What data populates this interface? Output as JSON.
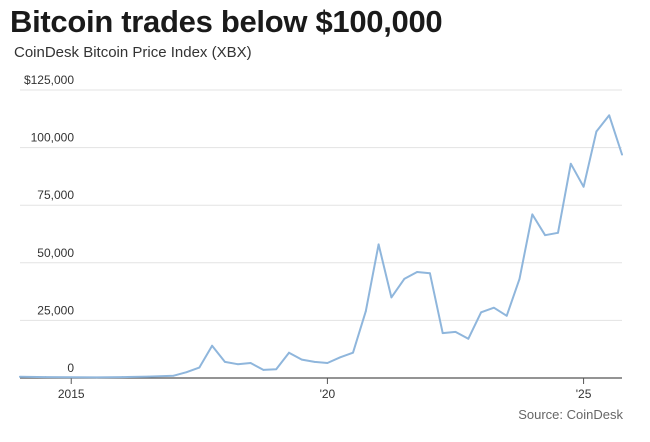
{
  "title": "Bitcoin trades below $100,000",
  "subtitle": "CoinDesk Bitcoin Price Index (XBX)",
  "source": "Source: CoinDesk",
  "colors": {
    "line": "#8fb6dc",
    "grid": "#e3e3e3",
    "axis": "#555555"
  },
  "chart_data": {
    "type": "line",
    "title": "Bitcoin trades below $100,000",
    "subtitle": "CoinDesk Bitcoin Price Index (XBX)",
    "xlabel": "",
    "ylabel": "",
    "ylim": [
      0,
      125000
    ],
    "xlim": [
      2014.0,
      2025.75
    ],
    "y_ticks": [
      {
        "value": 0,
        "label": "0"
      },
      {
        "value": 25000,
        "label": "25,000"
      },
      {
        "value": 50000,
        "label": "50,000"
      },
      {
        "value": 75000,
        "label": "75,000"
      },
      {
        "value": 100000,
        "label": "100,000"
      },
      {
        "value": 125000,
        "label": "$125,000"
      }
    ],
    "x_ticks": [
      {
        "value": 2015,
        "label": "2015"
      },
      {
        "value": 2020,
        "label": "'20"
      },
      {
        "value": 2025,
        "label": "'25"
      }
    ],
    "grid": true,
    "legend": "none",
    "series": [
      {
        "x": [
          2014.0,
          2014.5,
          2015.0,
          2015.5,
          2016.0,
          2016.5,
          2017.0,
          2017.25,
          2017.5,
          2017.75,
          2018.0,
          2018.25,
          2018.5,
          2018.75,
          2019.0,
          2019.25,
          2019.5,
          2019.75,
          2020.0,
          2020.25,
          2020.5,
          2020.75,
          2021.0,
          2021.25,
          2021.5,
          2021.75,
          2022.0,
          2022.25,
          2022.5,
          2022.75,
          2023.0,
          2023.25,
          2023.5,
          2023.75,
          2024.0,
          2024.25,
          2024.5,
          2024.75,
          2025.0,
          2025.25,
          2025.5,
          2025.75
        ],
        "values": [
          500,
          400,
          300,
          250,
          400,
          600,
          1000,
          2500,
          4500,
          14000,
          7000,
          6000,
          6500,
          3500,
          3800,
          11000,
          8000,
          7000,
          6500,
          9000,
          11000,
          29000,
          58000,
          35000,
          43000,
          46000,
          45500,
          19500,
          20000,
          17000,
          28500,
          30500,
          27000,
          43000,
          71000,
          62000,
          63000,
          93000,
          83000,
          107000,
          114000,
          97000
        ]
      }
    ]
  }
}
